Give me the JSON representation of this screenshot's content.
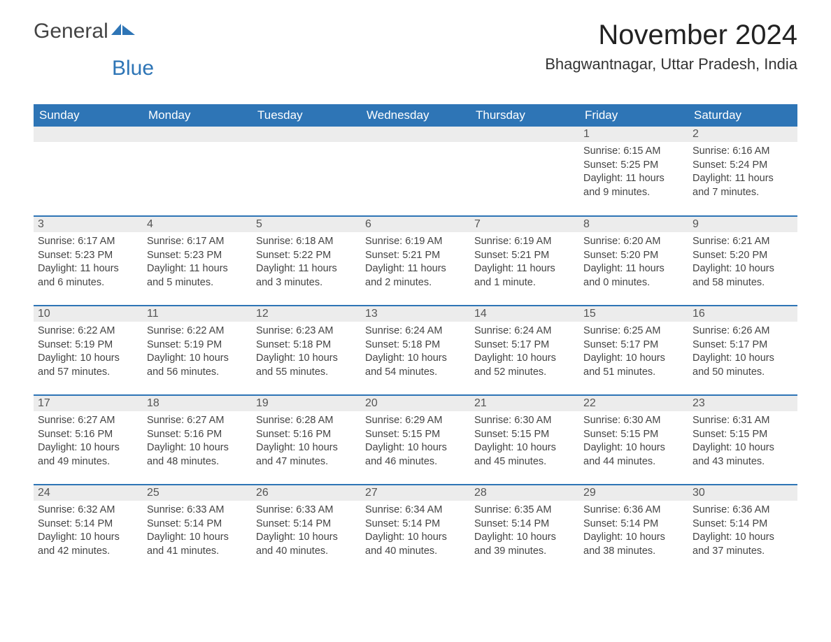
{
  "logo": {
    "text1": "General",
    "text2": "Blue"
  },
  "title": "November 2024",
  "location": "Bhagwantnagar, Uttar Pradesh, India",
  "weekdays": [
    "Sunday",
    "Monday",
    "Tuesday",
    "Wednesday",
    "Thursday",
    "Friday",
    "Saturday"
  ],
  "colors": {
    "header_bg": "#2e75b6",
    "header_text": "#ffffff",
    "row_divider": "#2e75b6",
    "daynum_bg": "#ececec",
    "body_text": "#444444"
  },
  "fonts": {
    "title_size_pt": 30,
    "location_size_pt": 16,
    "weekday_size_pt": 13,
    "daynum_size_pt": 12,
    "body_size_pt": 11
  },
  "weeks": [
    [
      null,
      null,
      null,
      null,
      null,
      {
        "n": "1",
        "sunrise": "Sunrise: 6:15 AM",
        "sunset": "Sunset: 5:25 PM",
        "daylight": "Daylight: 11 hours and 9 minutes."
      },
      {
        "n": "2",
        "sunrise": "Sunrise: 6:16 AM",
        "sunset": "Sunset: 5:24 PM",
        "daylight": "Daylight: 11 hours and 7 minutes."
      }
    ],
    [
      {
        "n": "3",
        "sunrise": "Sunrise: 6:17 AM",
        "sunset": "Sunset: 5:23 PM",
        "daylight": "Daylight: 11 hours and 6 minutes."
      },
      {
        "n": "4",
        "sunrise": "Sunrise: 6:17 AM",
        "sunset": "Sunset: 5:23 PM",
        "daylight": "Daylight: 11 hours and 5 minutes."
      },
      {
        "n": "5",
        "sunrise": "Sunrise: 6:18 AM",
        "sunset": "Sunset: 5:22 PM",
        "daylight": "Daylight: 11 hours and 3 minutes."
      },
      {
        "n": "6",
        "sunrise": "Sunrise: 6:19 AM",
        "sunset": "Sunset: 5:21 PM",
        "daylight": "Daylight: 11 hours and 2 minutes."
      },
      {
        "n": "7",
        "sunrise": "Sunrise: 6:19 AM",
        "sunset": "Sunset: 5:21 PM",
        "daylight": "Daylight: 11 hours and 1 minute."
      },
      {
        "n": "8",
        "sunrise": "Sunrise: 6:20 AM",
        "sunset": "Sunset: 5:20 PM",
        "daylight": "Daylight: 11 hours and 0 minutes."
      },
      {
        "n": "9",
        "sunrise": "Sunrise: 6:21 AM",
        "sunset": "Sunset: 5:20 PM",
        "daylight": "Daylight: 10 hours and 58 minutes."
      }
    ],
    [
      {
        "n": "10",
        "sunrise": "Sunrise: 6:22 AM",
        "sunset": "Sunset: 5:19 PM",
        "daylight": "Daylight: 10 hours and 57 minutes."
      },
      {
        "n": "11",
        "sunrise": "Sunrise: 6:22 AM",
        "sunset": "Sunset: 5:19 PM",
        "daylight": "Daylight: 10 hours and 56 minutes."
      },
      {
        "n": "12",
        "sunrise": "Sunrise: 6:23 AM",
        "sunset": "Sunset: 5:18 PM",
        "daylight": "Daylight: 10 hours and 55 minutes."
      },
      {
        "n": "13",
        "sunrise": "Sunrise: 6:24 AM",
        "sunset": "Sunset: 5:18 PM",
        "daylight": "Daylight: 10 hours and 54 minutes."
      },
      {
        "n": "14",
        "sunrise": "Sunrise: 6:24 AM",
        "sunset": "Sunset: 5:17 PM",
        "daylight": "Daylight: 10 hours and 52 minutes."
      },
      {
        "n": "15",
        "sunrise": "Sunrise: 6:25 AM",
        "sunset": "Sunset: 5:17 PM",
        "daylight": "Daylight: 10 hours and 51 minutes."
      },
      {
        "n": "16",
        "sunrise": "Sunrise: 6:26 AM",
        "sunset": "Sunset: 5:17 PM",
        "daylight": "Daylight: 10 hours and 50 minutes."
      }
    ],
    [
      {
        "n": "17",
        "sunrise": "Sunrise: 6:27 AM",
        "sunset": "Sunset: 5:16 PM",
        "daylight": "Daylight: 10 hours and 49 minutes."
      },
      {
        "n": "18",
        "sunrise": "Sunrise: 6:27 AM",
        "sunset": "Sunset: 5:16 PM",
        "daylight": "Daylight: 10 hours and 48 minutes."
      },
      {
        "n": "19",
        "sunrise": "Sunrise: 6:28 AM",
        "sunset": "Sunset: 5:16 PM",
        "daylight": "Daylight: 10 hours and 47 minutes."
      },
      {
        "n": "20",
        "sunrise": "Sunrise: 6:29 AM",
        "sunset": "Sunset: 5:15 PM",
        "daylight": "Daylight: 10 hours and 46 minutes."
      },
      {
        "n": "21",
        "sunrise": "Sunrise: 6:30 AM",
        "sunset": "Sunset: 5:15 PM",
        "daylight": "Daylight: 10 hours and 45 minutes."
      },
      {
        "n": "22",
        "sunrise": "Sunrise: 6:30 AM",
        "sunset": "Sunset: 5:15 PM",
        "daylight": "Daylight: 10 hours and 44 minutes."
      },
      {
        "n": "23",
        "sunrise": "Sunrise: 6:31 AM",
        "sunset": "Sunset: 5:15 PM",
        "daylight": "Daylight: 10 hours and 43 minutes."
      }
    ],
    [
      {
        "n": "24",
        "sunrise": "Sunrise: 6:32 AM",
        "sunset": "Sunset: 5:14 PM",
        "daylight": "Daylight: 10 hours and 42 minutes."
      },
      {
        "n": "25",
        "sunrise": "Sunrise: 6:33 AM",
        "sunset": "Sunset: 5:14 PM",
        "daylight": "Daylight: 10 hours and 41 minutes."
      },
      {
        "n": "26",
        "sunrise": "Sunrise: 6:33 AM",
        "sunset": "Sunset: 5:14 PM",
        "daylight": "Daylight: 10 hours and 40 minutes."
      },
      {
        "n": "27",
        "sunrise": "Sunrise: 6:34 AM",
        "sunset": "Sunset: 5:14 PM",
        "daylight": "Daylight: 10 hours and 40 minutes."
      },
      {
        "n": "28",
        "sunrise": "Sunrise: 6:35 AM",
        "sunset": "Sunset: 5:14 PM",
        "daylight": "Daylight: 10 hours and 39 minutes."
      },
      {
        "n": "29",
        "sunrise": "Sunrise: 6:36 AM",
        "sunset": "Sunset: 5:14 PM",
        "daylight": "Daylight: 10 hours and 38 minutes."
      },
      {
        "n": "30",
        "sunrise": "Sunrise: 6:36 AM",
        "sunset": "Sunset: 5:14 PM",
        "daylight": "Daylight: 10 hours and 37 minutes."
      }
    ]
  ]
}
